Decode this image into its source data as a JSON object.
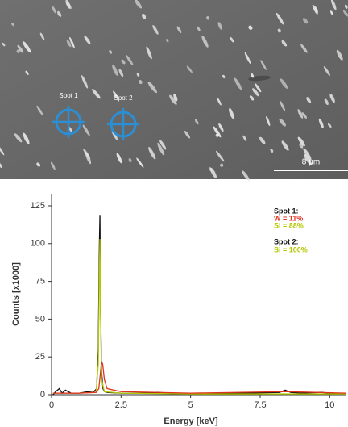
{
  "image": {
    "spot_labels": [
      "Spot 1",
      "Spot 2"
    ],
    "scale_bar": "8 μm"
  },
  "chart_data": {
    "type": "line",
    "x_label": "Energy [keV]",
    "y_label": "Counts [x1000]",
    "xlim": [
      0,
      10.6
    ],
    "ylim": [
      0,
      133
    ],
    "xticks": [
      0,
      2.5,
      5,
      7.5,
      10
    ],
    "yticks": [
      0,
      25,
      50,
      75,
      100,
      125
    ],
    "series": [
      {
        "color": "#111111",
        "x": [
          0.05,
          0.15,
          0.28,
          0.38,
          0.5,
          0.7,
          1.0,
          1.3,
          1.5,
          1.62,
          1.68,
          1.72,
          1.74,
          1.76,
          1.8,
          1.85,
          1.9,
          2.0,
          2.5,
          3.0,
          3.5,
          3.8,
          4.2,
          5,
          6,
          7,
          8.2,
          8.4,
          8.6,
          9,
          9.7,
          10,
          10.6
        ],
        "values": [
          0,
          2,
          4,
          1,
          3,
          1,
          1,
          2,
          1.5,
          4,
          30,
          100,
          119,
          60,
          15,
          4,
          2,
          1.5,
          1,
          1,
          1,
          1.5,
          1,
          1,
          1,
          1,
          1.5,
          3,
          1.5,
          1,
          1.5,
          1,
          1
        ]
      },
      {
        "color": "#b5c800",
        "x": [
          0.05,
          1.0,
          1.6,
          1.68,
          1.72,
          1.74,
          1.76,
          1.8,
          1.9,
          2.5,
          5,
          10.6
        ],
        "values": [
          1,
          1,
          1.5,
          20,
          80,
          103,
          55,
          10,
          2,
          1,
          0.5,
          0.5
        ]
      },
      {
        "color": "#e03020",
        "x": [
          0.05,
          1,
          1.6,
          1.7,
          1.76,
          1.8,
          1.84,
          1.9,
          2.0,
          2.5,
          5,
          8.4,
          10.6
        ],
        "values": [
          1,
          1,
          1.5,
          4,
          15,
          22,
          20,
          10,
          4,
          2,
          1,
          2,
          1
        ]
      }
    ],
    "annotations": [
      {
        "text": "Spot 1:",
        "color": "#111111"
      },
      {
        "text": "W = 11%",
        "color": "#e03020"
      },
      {
        "text": "Si = 88%",
        "color": "#b5c800"
      },
      {
        "text": "Spot 2:",
        "color": "#111111"
      },
      {
        "text": "Si = 100%",
        "color": "#b5c800"
      }
    ]
  }
}
